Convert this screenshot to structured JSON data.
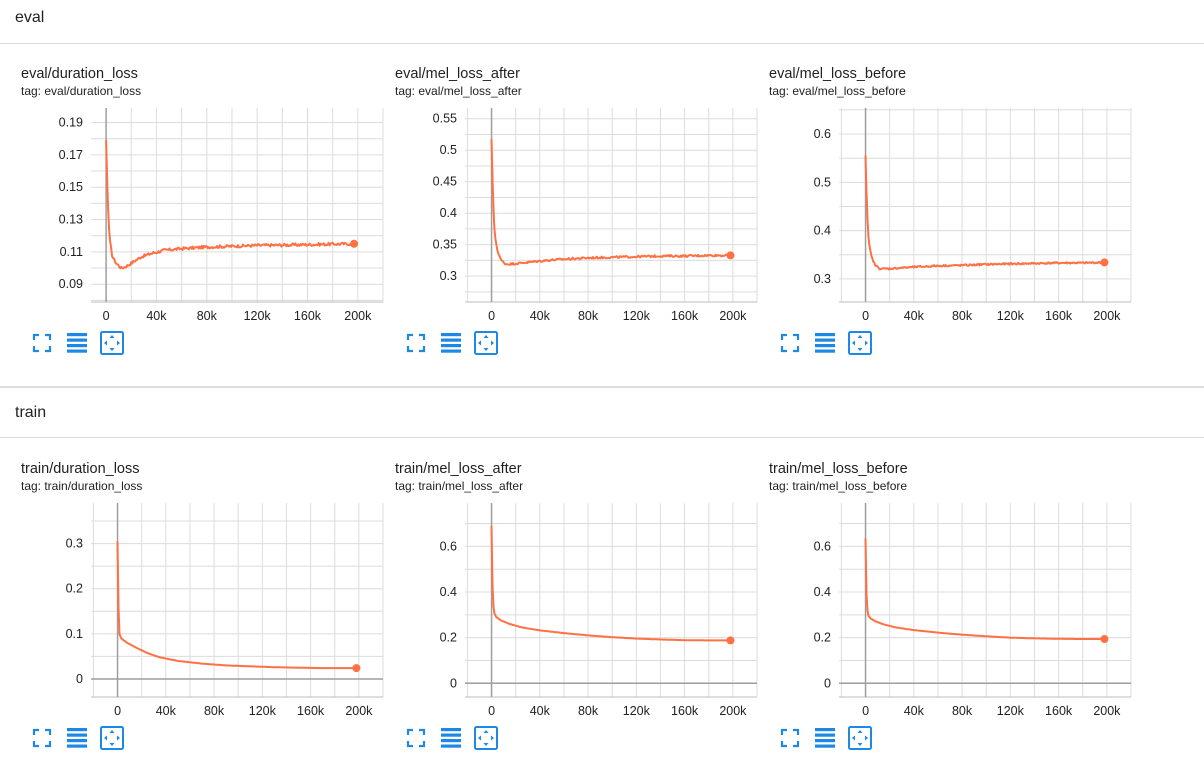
{
  "accent_color": "#ff7043",
  "toolbar_icon_color": "#1e88e5",
  "sections": [
    {
      "title": "eval",
      "cards": [
        {
          "title": "eval/duration_loss",
          "tag": "tag: eval/duration_loss",
          "chart_data": {
            "type": "line",
            "xlim": [
              -12000,
              220000
            ],
            "ylim": [
              0.079,
              0.199
            ],
            "yticks": [
              0.09,
              0.11,
              0.13,
              0.15,
              0.17,
              0.19
            ],
            "ytick_labels": [
              "0.09",
              "0.11",
              "0.13",
              "0.15",
              "0.17",
              "0.19"
            ],
            "xticks": [
              0,
              40000,
              80000,
              120000,
              160000,
              200000
            ],
            "xtick_labels": [
              "0",
              "40k",
              "80k",
              "120k",
              "160k",
              "200k"
            ],
            "grid": true,
            "points": [
              [
                0,
                0.179
              ],
              [
                1000,
                0.15
              ],
              [
                2000,
                0.128
              ],
              [
                3000,
                0.117
              ],
              [
                5000,
                0.107
              ],
              [
                8000,
                0.103
              ],
              [
                12000,
                0.1
              ],
              [
                16000,
                0.101
              ],
              [
                20000,
                0.103
              ],
              [
                28000,
                0.107
              ],
              [
                36000,
                0.109
              ],
              [
                46000,
                0.111
              ],
              [
                60000,
                0.112
              ],
              [
                80000,
                0.113
              ],
              [
                100000,
                0.1135
              ],
              [
                120000,
                0.114
              ],
              [
                140000,
                0.1142
              ],
              [
                160000,
                0.1145
              ],
              [
                180000,
                0.1148
              ],
              [
                197000,
                0.115
              ]
            ],
            "noise": 0.0009,
            "last_point": [
              197000,
              0.115
            ]
          }
        },
        {
          "title": "eval/mel_loss_after",
          "tag": "tag: eval/mel_loss_after",
          "chart_data": {
            "type": "line",
            "xlim": [
              -22000,
              220000
            ],
            "ylim": [
              0.259,
              0.567
            ],
            "yticks": [
              0.3,
              0.35,
              0.4,
              0.45,
              0.5,
              0.55
            ],
            "ytick_labels": [
              "0.3",
              "0.35",
              "0.4",
              "0.45",
              "0.5",
              "0.55"
            ],
            "xticks": [
              0,
              40000,
              80000,
              120000,
              160000,
              200000
            ],
            "xtick_labels": [
              "0",
              "40k",
              "80k",
              "120k",
              "160k",
              "200k"
            ],
            "grid": true,
            "points": [
              [
                0,
                0.518
              ],
              [
                1000,
                0.44
              ],
              [
                2000,
                0.385
              ],
              [
                3000,
                0.36
              ],
              [
                5000,
                0.34
              ],
              [
                8000,
                0.325
              ],
              [
                12000,
                0.319
              ],
              [
                20000,
                0.32
              ],
              [
                30000,
                0.322
              ],
              [
                45000,
                0.325
              ],
              [
                60000,
                0.327
              ],
              [
                80000,
                0.329
              ],
              [
                100000,
                0.33
              ],
              [
                120000,
                0.331
              ],
              [
                140000,
                0.332
              ],
              [
                160000,
                0.332
              ],
              [
                180000,
                0.333
              ],
              [
                198000,
                0.333
              ]
            ],
            "noise": 0.0016,
            "last_point": [
              198000,
              0.333
            ]
          }
        },
        {
          "title": "eval/mel_loss_before",
          "tag": "tag: eval/mel_loss_before",
          "chart_data": {
            "type": "line",
            "xlim": [
              -22000,
              220000
            ],
            "ylim": [
              0.252,
              0.654
            ],
            "yticks": [
              0.3,
              0.4,
              0.5,
              0.6
            ],
            "ytick_labels": [
              "0.3",
              "0.4",
              "0.5",
              "0.6"
            ],
            "xticks": [
              0,
              40000,
              80000,
              120000,
              160000,
              200000
            ],
            "xtick_labels": [
              "0",
              "40k",
              "80k",
              "120k",
              "160k",
              "200k"
            ],
            "grid": true,
            "points": [
              [
                0,
                0.556
              ],
              [
                1000,
                0.46
              ],
              [
                2000,
                0.4
              ],
              [
                3000,
                0.37
              ],
              [
                5000,
                0.345
              ],
              [
                8000,
                0.328
              ],
              [
                12000,
                0.321
              ],
              [
                20000,
                0.321
              ],
              [
                30000,
                0.323
              ],
              [
                45000,
                0.325
              ],
              [
                60000,
                0.327
              ],
              [
                80000,
                0.328
              ],
              [
                100000,
                0.33
              ],
              [
                120000,
                0.331
              ],
              [
                140000,
                0.332
              ],
              [
                160000,
                0.333
              ],
              [
                180000,
                0.333
              ],
              [
                198000,
                0.334
              ]
            ],
            "noise": 0.0018,
            "last_point": [
              198000,
              0.334
            ]
          }
        }
      ]
    },
    {
      "title": "train",
      "cards": [
        {
          "title": "train/duration_loss",
          "tag": "tag: train/duration_loss",
          "chart_data": {
            "type": "line",
            "xlim": [
              -22000,
              220000
            ],
            "ylim": [
              -0.04,
              0.39
            ],
            "yticks": [
              0,
              0.1,
              0.2,
              0.3
            ],
            "ytick_labels": [
              "0",
              "0.1",
              "0.2",
              "0.3"
            ],
            "xticks": [
              0,
              40000,
              80000,
              120000,
              160000,
              200000
            ],
            "xtick_labels": [
              "0",
              "40k",
              "80k",
              "120k",
              "160k",
              "200k"
            ],
            "grid": true,
            "points": [
              [
                0,
                0.305
              ],
              [
                500,
                0.2
              ],
              [
                1000,
                0.13
              ],
              [
                1500,
                0.1
              ],
              [
                3000,
                0.09
              ],
              [
                8000,
                0.08
              ],
              [
                15000,
                0.07
              ],
              [
                25000,
                0.057
              ],
              [
                35000,
                0.048
              ],
              [
                50000,
                0.04
              ],
              [
                70000,
                0.034
              ],
              [
                90000,
                0.03
              ],
              [
                110000,
                0.028
              ],
              [
                130000,
                0.026
              ],
              [
                150000,
                0.025
              ],
              [
                170000,
                0.024
              ],
              [
                198000,
                0.024
              ]
            ],
            "noise": 0,
            "last_point": [
              198000,
              0.024
            ]
          }
        },
        {
          "title": "train/mel_loss_after",
          "tag": "tag: train/mel_loss_after",
          "chart_data": {
            "type": "line",
            "xlim": [
              -22000,
              220000
            ],
            "ylim": [
              -0.06,
              0.79
            ],
            "yticks": [
              0,
              0.2,
              0.4,
              0.6
            ],
            "ytick_labels": [
              "0",
              "0.2",
              "0.4",
              "0.6"
            ],
            "xticks": [
              0,
              40000,
              80000,
              120000,
              160000,
              200000
            ],
            "xtick_labels": [
              "0",
              "40k",
              "80k",
              "120k",
              "160k",
              "200k"
            ],
            "grid": true,
            "points": [
              [
                0,
                0.69
              ],
              [
                500,
                0.5
              ],
              [
                1000,
                0.38
              ],
              [
                2000,
                0.31
              ],
              [
                4000,
                0.29
              ],
              [
                8000,
                0.275
              ],
              [
                15000,
                0.26
              ],
              [
                25000,
                0.245
              ],
              [
                40000,
                0.232
              ],
              [
                60000,
                0.22
              ],
              [
                80000,
                0.21
              ],
              [
                100000,
                0.202
              ],
              [
                120000,
                0.196
              ],
              [
                140000,
                0.192
              ],
              [
                160000,
                0.189
              ],
              [
                180000,
                0.188
              ],
              [
                198000,
                0.188
              ]
            ],
            "noise": 0,
            "last_point": [
              198000,
              0.188
            ]
          }
        },
        {
          "title": "train/mel_loss_before",
          "tag": "tag: train/mel_loss_before",
          "chart_data": {
            "type": "line",
            "xlim": [
              -22000,
              220000
            ],
            "ylim": [
              -0.06,
              0.79
            ],
            "yticks": [
              0,
              0.2,
              0.4,
              0.6
            ],
            "ytick_labels": [
              "0",
              "0.2",
              "0.4",
              "0.6"
            ],
            "xticks": [
              0,
              40000,
              80000,
              120000,
              160000,
              200000
            ],
            "xtick_labels": [
              "0",
              "40k",
              "80k",
              "120k",
              "160k",
              "200k"
            ],
            "grid": true,
            "points": [
              [
                0,
                0.635
              ],
              [
                500,
                0.45
              ],
              [
                1000,
                0.35
              ],
              [
                2000,
                0.3
              ],
              [
                4000,
                0.285
              ],
              [
                8000,
                0.272
              ],
              [
                15000,
                0.258
              ],
              [
                25000,
                0.245
              ],
              [
                40000,
                0.233
              ],
              [
                60000,
                0.222
              ],
              [
                80000,
                0.213
              ],
              [
                100000,
                0.206
              ],
              [
                120000,
                0.2
              ],
              [
                140000,
                0.197
              ],
              [
                160000,
                0.195
              ],
              [
                180000,
                0.194
              ],
              [
                198000,
                0.194
              ]
            ],
            "noise": 0,
            "last_point": [
              198000,
              0.194
            ]
          }
        }
      ]
    }
  ]
}
